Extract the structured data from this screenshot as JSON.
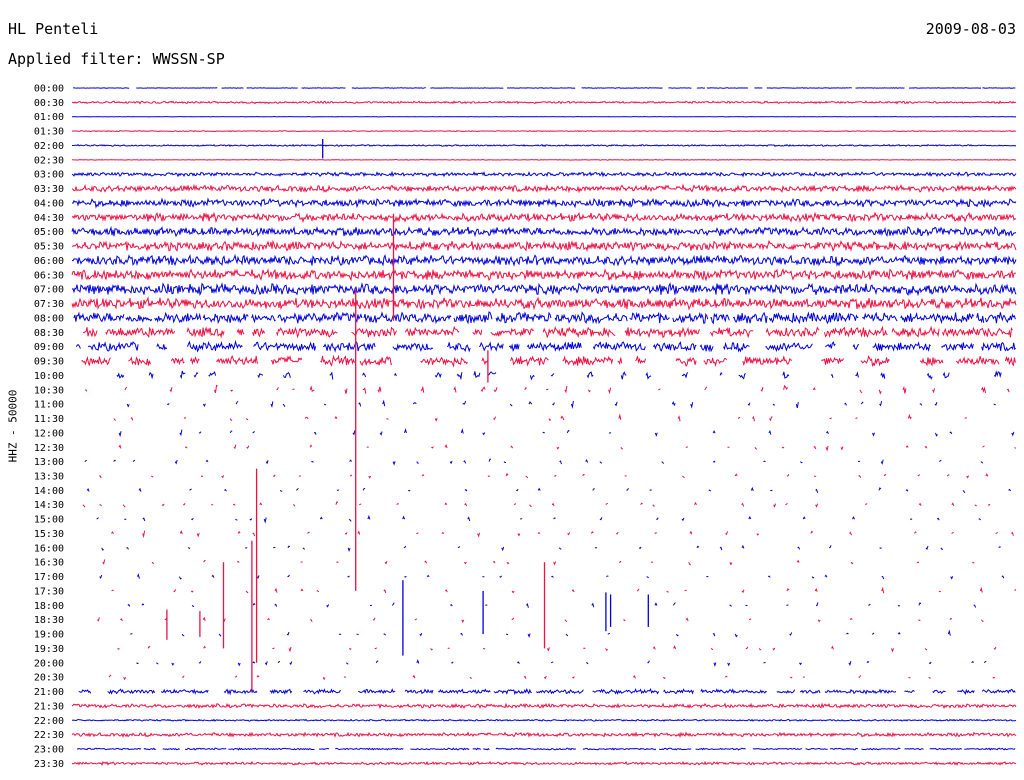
{
  "header": {
    "station": "HL Penteli",
    "date": "2009-08-03",
    "filter_label": "Applied filter: WWSSN-SP"
  },
  "colors": {
    "trace_even": "#0000dd",
    "trace_odd": "#ee1144"
  },
  "chart_data": {
    "type": "line",
    "title": "HL Penteli",
    "subtitle": "Applied filter: WWSSN-SP",
    "date": "2009-08-03",
    "ylabel": "HHZ - 50000",
    "xlabel": "",
    "grid": false,
    "legend": "none",
    "row_minutes": 30,
    "y_ticks": [
      "00:00",
      "00:30",
      "01:00",
      "01:30",
      "02:00",
      "02:30",
      "03:00",
      "03:30",
      "04:00",
      "04:30",
      "05:00",
      "05:30",
      "06:00",
      "06:30",
      "07:00",
      "07:30",
      "08:00",
      "08:30",
      "09:00",
      "09:30",
      "10:00",
      "10:30",
      "11:00",
      "11:30",
      "12:00",
      "12:30",
      "13:00",
      "13:30",
      "14:00",
      "14:30",
      "15:00",
      "15:30",
      "16:00",
      "16:30",
      "17:00",
      "17:30",
      "18:00",
      "18:30",
      "19:00",
      "19:30",
      "20:00",
      "20:30",
      "21:00",
      "21:30",
      "22:00",
      "22:30",
      "23:00",
      "23:30"
    ],
    "series": [
      {
        "row": "00:00",
        "amplitude": 0.05,
        "continuity": 0.9
      },
      {
        "row": "00:30",
        "amplitude": 0.2,
        "continuity": 1.0
      },
      {
        "row": "01:00",
        "amplitude": 0.04,
        "continuity": 1.0
      },
      {
        "row": "01:30",
        "amplitude": 0.08,
        "continuity": 1.0
      },
      {
        "row": "02:00",
        "amplitude": 0.15,
        "continuity": 1.0
      },
      {
        "row": "02:30",
        "amplitude": 0.06,
        "continuity": 1.0
      },
      {
        "row": "03:00",
        "amplitude": 0.35,
        "continuity": 1.0
      },
      {
        "row": "03:30",
        "amplitude": 0.6,
        "continuity": 1.0
      },
      {
        "row": "04:00",
        "amplitude": 0.7,
        "continuity": 1.0
      },
      {
        "row": "04:30",
        "amplitude": 0.75,
        "continuity": 1.0
      },
      {
        "row": "05:00",
        "amplitude": 0.8,
        "continuity": 1.0
      },
      {
        "row": "05:30",
        "amplitude": 0.85,
        "continuity": 1.0
      },
      {
        "row": "06:00",
        "amplitude": 0.9,
        "continuity": 1.0
      },
      {
        "row": "06:30",
        "amplitude": 0.95,
        "continuity": 1.0
      },
      {
        "row": "07:00",
        "amplitude": 1.0,
        "continuity": 1.0
      },
      {
        "row": "07:30",
        "amplitude": 1.0,
        "continuity": 1.0
      },
      {
        "row": "08:00",
        "amplitude": 1.0,
        "continuity": 0.95
      },
      {
        "row": "08:30",
        "amplitude": 0.9,
        "continuity": 0.8
      },
      {
        "row": "09:00",
        "amplitude": 0.85,
        "continuity": 0.7
      },
      {
        "row": "09:30",
        "amplitude": 0.9,
        "continuity": 0.55
      },
      {
        "row": "10:00",
        "amplitude": 0.8,
        "continuity": 0.35
      },
      {
        "row": "10:30",
        "amplitude": 0.8,
        "continuity": 0.18
      },
      {
        "row": "11:00",
        "amplitude": 0.7,
        "continuity": 0.15
      },
      {
        "row": "11:30",
        "amplitude": 0.6,
        "continuity": 0.15
      },
      {
        "row": "12:00",
        "amplitude": 0.6,
        "continuity": 0.12
      },
      {
        "row": "12:30",
        "amplitude": 0.5,
        "continuity": 0.08
      },
      {
        "row": "13:00",
        "amplitude": 0.5,
        "continuity": 0.1
      },
      {
        "row": "13:30",
        "amplitude": 0.5,
        "continuity": 0.08
      },
      {
        "row": "14:00",
        "amplitude": 0.5,
        "continuity": 0.1
      },
      {
        "row": "14:30",
        "amplitude": 0.5,
        "continuity": 0.07
      },
      {
        "row": "15:00",
        "amplitude": 0.5,
        "continuity": 0.06
      },
      {
        "row": "15:30",
        "amplitude": 0.5,
        "continuity": 0.06
      },
      {
        "row": "16:00",
        "amplitude": 0.5,
        "continuity": 0.06
      },
      {
        "row": "16:30",
        "amplitude": 0.5,
        "continuity": 0.04
      },
      {
        "row": "17:00",
        "amplitude": 0.5,
        "continuity": 0.03
      },
      {
        "row": "17:30",
        "amplitude": 0.5,
        "continuity": 0.04
      },
      {
        "row": "18:00",
        "amplitude": 0.5,
        "continuity": 0.05
      },
      {
        "row": "18:30",
        "amplitude": 0.5,
        "continuity": 0.04
      },
      {
        "row": "19:00",
        "amplitude": 0.5,
        "continuity": 0.03
      },
      {
        "row": "19:30",
        "amplitude": 0.5,
        "continuity": 0.03
      },
      {
        "row": "20:00",
        "amplitude": 0.5,
        "continuity": 0.02
      },
      {
        "row": "20:30",
        "amplitude": 0.5,
        "continuity": 0.02
      },
      {
        "row": "21:00",
        "amplitude": 0.4,
        "continuity": 0.75
      },
      {
        "row": "21:30",
        "amplitude": 0.35,
        "continuity": 1.0
      },
      {
        "row": "22:00",
        "amplitude": 0.15,
        "continuity": 1.0
      },
      {
        "row": "22:30",
        "amplitude": 0.35,
        "continuity": 1.0
      },
      {
        "row": "23:00",
        "amplitude": 0.15,
        "continuity": 0.9
      },
      {
        "row": "23:30",
        "amplitude": 0.25,
        "continuity": 1.0
      }
    ],
    "spikes": [
      {
        "row": "02:00",
        "x": 0.53,
        "height": 0.9
      },
      {
        "row": "05:30",
        "x": 0.68,
        "height": 4.5
      },
      {
        "row": "07:30",
        "x": 0.68,
        "height": 1.2
      },
      {
        "row": "09:30",
        "x": 0.88,
        "height": 1.5
      },
      {
        "row": "10:30",
        "x": 0.6,
        "height": 14.0
      },
      {
        "row": "15:30",
        "x": 0.39,
        "height": 9.0
      },
      {
        "row": "17:30",
        "x": 0.38,
        "height": 7.0
      },
      {
        "row": "17:30",
        "x": 0.32,
        "height": 4.0
      },
      {
        "row": "18:00",
        "x": 0.7,
        "height": 3.5
      },
      {
        "row": "17:30",
        "x": 1.0,
        "height": 4.0
      },
      {
        "row": "18:00",
        "x": 0.87,
        "height": 2.0
      },
      {
        "row": "18:00",
        "x": 1.13,
        "height": 1.8
      },
      {
        "row": "18:00",
        "x": 1.22,
        "height": 1.5
      },
      {
        "row": "18:00",
        "x": 1.14,
        "height": 1.5
      },
      {
        "row": "18:30",
        "x": 0.2,
        "height": 1.4
      },
      {
        "row": "18:30",
        "x": 0.27,
        "height": 1.2
      }
    ]
  }
}
